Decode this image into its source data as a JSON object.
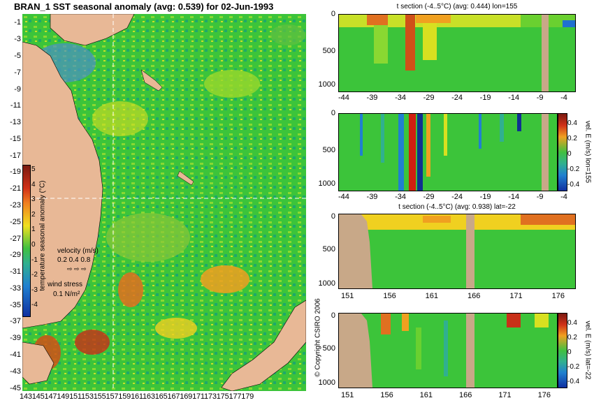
{
  "map": {
    "title": "BRAN_1 SST seasonal anomaly (avg: 0.539) for 02-Jun-1993",
    "lat_ticks": [
      "-1",
      "-3",
      "-5",
      "-7",
      "-9",
      "-11",
      "-13",
      "-15",
      "-17",
      "-19",
      "-21",
      "-23",
      "-25",
      "-27",
      "-29",
      "-31",
      "-33",
      "-35",
      "-37",
      "-39",
      "-41",
      "-43",
      "-45"
    ],
    "lon_ticks": [
      "143",
      "145",
      "147",
      "149",
      "151",
      "153",
      "155",
      "157",
      "159",
      "161",
      "163",
      "165",
      "167",
      "169",
      "171",
      "173",
      "175",
      "177",
      "179"
    ],
    "colorbar": {
      "label": "temperature seasonal anomaly (°C)",
      "ticks": [
        "5",
        "4",
        "3",
        "2",
        "1",
        "0",
        "-1",
        "-2",
        "-3",
        "-4"
      ]
    },
    "velocity_legend": {
      "title": "velocity (m/s)",
      "values": "0.2 0.4 0.8"
    },
    "wind_legend": {
      "title": "wind stress",
      "value": "0.1 N/m²"
    },
    "copyright": "© Copyright CSIRO 2006",
    "colors": {
      "land": "#e8b896",
      "ocean_base": "#2fbf3a"
    }
  },
  "panels": [
    {
      "title": "t section (-4..5°C) (avg: 0.444) lon=155",
      "x_ticks": [
        "-44",
        "-39",
        "-34",
        "-29",
        "-24",
        "-19",
        "-14",
        "-9",
        "-4"
      ],
      "y_ticks": [
        "0",
        "500",
        "1000"
      ],
      "colorbar": null
    },
    {
      "title": "",
      "x_ticks": [
        "-44",
        "-39",
        "-34",
        "-29",
        "-24",
        "-19",
        "-14",
        "-9",
        "-4"
      ],
      "y_ticks": [
        "0",
        "500",
        "1000"
      ],
      "colorbar": {
        "label": "vel. E (m/s) lon=155",
        "ticks": [
          "0.4",
          "0.2",
          "0",
          "-0.2",
          "-0.4"
        ]
      }
    },
    {
      "title": "t section (-4..5°C) (avg: 0.938) lat=-22",
      "x_ticks": [
        "151",
        "156",
        "161",
        "166",
        "171",
        "176"
      ],
      "y_ticks": [
        "0",
        "500",
        "1000"
      ],
      "colorbar": null
    },
    {
      "title": "",
      "x_ticks": [
        "151",
        "156",
        "161",
        "166",
        "171",
        "176"
      ],
      "y_ticks": [
        "0",
        "500",
        "1000"
      ],
      "colorbar": {
        "label": "vel. E (m/s) lat=-22",
        "ticks": [
          "0.4",
          "0.2",
          "0",
          "-0.2",
          "-0.4"
        ]
      }
    }
  ]
}
